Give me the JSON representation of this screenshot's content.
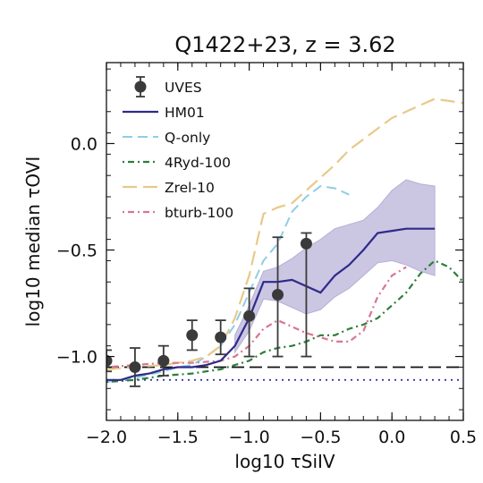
{
  "chart_data": {
    "type": "line",
    "title": "Q1422+23, z = 3.62",
    "xlabel": "log10 τSiIV",
    "ylabel": "log10 median τOVI",
    "xlim": [
      -2.0,
      0.5
    ],
    "ylim": [
      -1.3,
      0.38
    ],
    "xticks": [
      -2.0,
      -1.5,
      -1.0,
      -0.5,
      0.0,
      0.5
    ],
    "xtick_labels": [
      "−2.0",
      "−1.5",
      "−1.0",
      "−0.5",
      "0.0",
      "0.5"
    ],
    "yticks": [
      -1.0,
      -0.5,
      0.0
    ],
    "ytick_labels": [
      "−1.0",
      "−0.5",
      "0.0"
    ],
    "grid": false,
    "legend_position": "top-left",
    "colors": {
      "uves": "#3a3a3a",
      "hm01": "#2e2a8a",
      "hm01_band": "#b5aed6",
      "qonly": "#8fcde6",
      "ryd": "#2e7d3a",
      "zrel": "#e8c98a",
      "bturb": "#d7778f",
      "reference": "#111111",
      "noise": "#2a2aa0"
    },
    "uves": {
      "name": "UVES",
      "x": [
        -2.0,
        -1.8,
        -1.6,
        -1.4,
        -1.2,
        -1.0,
        -0.8,
        -0.6
      ],
      "y": [
        -1.02,
        -1.05,
        -1.02,
        -0.9,
        -0.91,
        -0.81,
        -0.71,
        -0.47
      ],
      "err": [
        0.05,
        0.09,
        0.07,
        0.07,
        0.08,
        0.13,
        0.27,
        0.05
      ],
      "err_low": [
        0.05,
        0.09,
        0.07,
        0.07,
        0.08,
        0.19,
        0.29,
        0.53
      ]
    },
    "hm01": {
      "name": "HM01",
      "x": [
        -2.0,
        -1.9,
        -1.8,
        -1.7,
        -1.6,
        -1.5,
        -1.4,
        -1.3,
        -1.2,
        -1.1,
        -1.0,
        -0.9,
        -0.8,
        -0.7,
        -0.6,
        -0.5,
        -0.4,
        -0.3,
        -0.2,
        -0.1,
        0.0,
        0.1,
        0.2,
        0.3
      ],
      "y": [
        -1.11,
        -1.11,
        -1.09,
        -1.08,
        -1.06,
        -1.05,
        -1.05,
        -1.04,
        -1.02,
        -0.95,
        -0.82,
        -0.65,
        -0.65,
        -0.64,
        -0.67,
        -0.7,
        -0.62,
        -0.57,
        -0.5,
        -0.42,
        -0.41,
        -0.4,
        -0.4,
        -0.4
      ],
      "band_x": [
        -1.1,
        -1.0,
        -0.9,
        -0.8,
        -0.7,
        -0.6,
        -0.5,
        -0.4,
        -0.3,
        -0.2,
        -0.1,
        0.0,
        0.1,
        0.2,
        0.3
      ],
      "band_low": [
        -0.98,
        -0.88,
        -0.73,
        -0.74,
        -0.77,
        -0.8,
        -0.78,
        -0.72,
        -0.68,
        -0.62,
        -0.56,
        -0.55,
        -0.57,
        -0.6,
        -0.62
      ],
      "band_high": [
        -0.9,
        -0.76,
        -0.6,
        -0.58,
        -0.54,
        -0.49,
        -0.45,
        -0.4,
        -0.38,
        -0.36,
        -0.3,
        -0.22,
        -0.17,
        -0.19,
        -0.2
      ]
    },
    "series": [
      {
        "name": "Q-only",
        "x": [
          -2.0,
          -1.8,
          -1.6,
          -1.5,
          -1.4,
          -1.3,
          -1.2,
          -1.1,
          -1.0,
          -0.9,
          -0.8,
          -0.7,
          -0.6,
          -0.5,
          -0.4,
          -0.3
        ],
        "y": [
          -1.12,
          -1.1,
          -1.07,
          -1.05,
          -1.04,
          -1.0,
          -0.95,
          -0.85,
          -0.7,
          -0.55,
          -0.47,
          -0.32,
          -0.25,
          -0.2,
          -0.21,
          -0.24
        ]
      },
      {
        "name": "4Ryd-100",
        "x": [
          -2.0,
          -1.8,
          -1.6,
          -1.4,
          -1.3,
          -1.2,
          -1.1,
          -1.0,
          -0.9,
          -0.8,
          -0.7,
          -0.6,
          -0.5,
          -0.4,
          -0.3,
          -0.2,
          -0.1,
          0.0,
          0.1,
          0.2,
          0.3,
          0.4,
          0.5
        ],
        "y": [
          -1.12,
          -1.11,
          -1.09,
          -1.08,
          -1.07,
          -1.06,
          -1.04,
          -1.02,
          -0.98,
          -0.96,
          -0.95,
          -0.93,
          -0.9,
          -0.9,
          -0.87,
          -0.85,
          -0.82,
          -0.76,
          -0.7,
          -0.61,
          -0.55,
          -0.58,
          -0.65
        ]
      },
      {
        "name": "Zrel-10",
        "x": [
          -2.0,
          -1.8,
          -1.6,
          -1.4,
          -1.3,
          -1.2,
          -1.1,
          -1.0,
          -0.9,
          -0.8,
          -0.7,
          -0.6,
          -0.5,
          -0.4,
          -0.3,
          -0.2,
          -0.1,
          0.0,
          0.1,
          0.2,
          0.3,
          0.4,
          0.5
        ],
        "y": [
          -1.06,
          -1.05,
          -1.04,
          -1.02,
          -1.0,
          -0.95,
          -0.82,
          -0.62,
          -0.33,
          -0.3,
          -0.28,
          -0.22,
          -0.16,
          -0.1,
          -0.03,
          0.02,
          0.07,
          0.12,
          0.15,
          0.18,
          0.21,
          0.2,
          0.19
        ]
      },
      {
        "name": "bturb-100",
        "x": [
          -2.0,
          -1.8,
          -1.6,
          -1.4,
          -1.2,
          -1.1,
          -1.0,
          -0.9,
          -0.8,
          -0.7,
          -0.6,
          -0.5,
          -0.4,
          -0.3,
          -0.2,
          -0.1,
          0.0,
          0.1
        ],
        "y": [
          -1.05,
          -1.04,
          -1.03,
          -1.03,
          -1.02,
          -1.0,
          -0.95,
          -0.87,
          -0.83,
          -0.86,
          -0.89,
          -0.91,
          -0.93,
          -0.93,
          -0.88,
          -0.72,
          -0.62,
          -0.58
        ]
      }
    ],
    "reference_lines": [
      {
        "style": "dashed",
        "y": -1.05
      },
      {
        "style": "dotted",
        "y": -1.11
      }
    ],
    "legend": [
      "UVES",
      "HM01",
      "Q-only",
      "4Ryd-100",
      "Zrel-10",
      "bturb-100"
    ]
  }
}
